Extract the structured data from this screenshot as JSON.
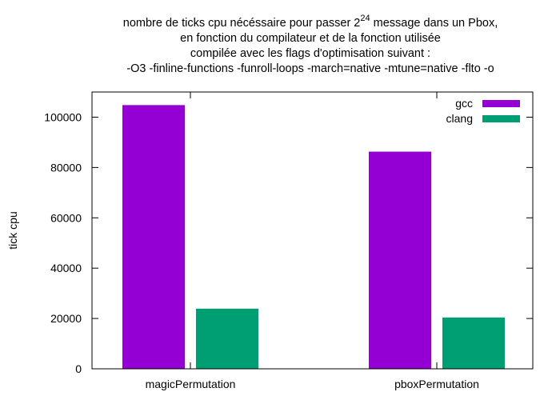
{
  "chart_data": {
    "type": "bar",
    "title_lines": [
      {
        "before": "nombre de ticks cpu nécéssaire pour passer 2",
        "sup": "24",
        "after": " message dans un Pbox,"
      },
      {
        "before": "en fonction du compilateur et de la fonction utilisée",
        "sup": "",
        "after": ""
      },
      {
        "before": "compilée avec les flags d'optimisation suivant :",
        "sup": "",
        "after": ""
      },
      {
        "before": "-O3 -finline-functions -funroll-loops -march=native -mtune=native -flto -o",
        "sup": "",
        "after": ""
      }
    ],
    "xlabel": "",
    "ylabel": "tick cpu",
    "categories": [
      "magicPermutation",
      "pboxPermutation"
    ],
    "series": [
      {
        "name": "gcc",
        "color": "#9400d3",
        "values": [
          104800,
          86300
        ]
      },
      {
        "name": "clang",
        "color": "#009e73",
        "values": [
          23900,
          20400
        ]
      }
    ],
    "ylim": [
      0,
      110000
    ],
    "yticks": [
      0,
      20000,
      40000,
      60000,
      80000,
      100000
    ],
    "grid": false,
    "legend_position": "top-right"
  }
}
